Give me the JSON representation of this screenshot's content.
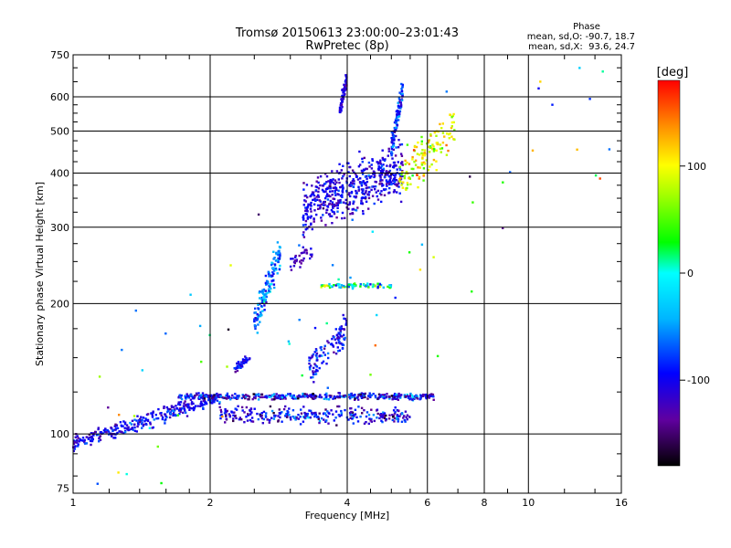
{
  "chart_data": {
    "type": "scatter",
    "title": "Tromsø 20150613 23:00:00–23:01:43",
    "subtitle": "RwPretec (8p)",
    "xlabel": "Frequency [MHz]",
    "ylabel": "Stationary phase Virtual Height [km]",
    "x_scale": "log",
    "y_scale": "log",
    "xlim": [
      1,
      16
    ],
    "ylim": [
      73,
      750
    ],
    "x_ticks": [
      1,
      2,
      4,
      6,
      8,
      10,
      16
    ],
    "y_ticks": [
      75,
      100,
      200,
      300,
      400,
      500,
      600,
      750
    ],
    "grid_x": [
      2,
      4,
      6,
      8,
      10
    ],
    "grid_y": [
      100,
      200,
      300,
      400,
      500,
      600
    ],
    "grid": true,
    "phase_stats": {
      "heading": "Phase",
      "line_o": "mean, sd,O: -90.7, 18.7",
      "line_x": "mean, sd,X:  93.6, 24.7"
    },
    "colorbar": {
      "label": "[deg]",
      "min": -180,
      "max": 180,
      "ticks": [
        100,
        0,
        -100
      ]
    },
    "groups": [
      {
        "fmin": 1.0,
        "fmax": 2.1,
        "h0": 95,
        "h1": 122,
        "n": 320,
        "hj": 0.03,
        "pc": -100,
        "ps": 30
      },
      {
        "fmin": 1.7,
        "fmax": 6.2,
        "h0": 122,
        "h1": 122,
        "n": 420,
        "hj": 0.012,
        "pc": -100,
        "ps": 55
      },
      {
        "fmin": 2.1,
        "fmax": 5.5,
        "h0": 111,
        "h1": 110,
        "n": 280,
        "hj": 0.03,
        "pc": -100,
        "ps": 45
      },
      {
        "fmin": 2.25,
        "fmax": 2.45,
        "h0": 140,
        "h1": 150,
        "n": 40,
        "hj": 0.02,
        "pc": -95,
        "ps": 25
      },
      {
        "fmin": 2.5,
        "fmax": 2.85,
        "h0": 180,
        "h1": 260,
        "n": 160,
        "hj": 0.06,
        "pc": -60,
        "ps": 45
      },
      {
        "fmin": 3.0,
        "fmax": 3.35,
        "h0": 245,
        "h1": 265,
        "n": 35,
        "hj": 0.03,
        "pc": -120,
        "ps": 20
      },
      {
        "fmin": 3.3,
        "fmax": 4.0,
        "h0": 140,
        "h1": 175,
        "n": 110,
        "hj": 0.06,
        "pc": -95,
        "ps": 30
      },
      {
        "fmin": 3.5,
        "fmax": 5.0,
        "h0": 220,
        "h1": 220,
        "n": 80,
        "hj": 0.01,
        "pc": 10,
        "ps": 90
      },
      {
        "fmin": 3.2,
        "fmax": 5.3,
        "h0": 330,
        "h1": 410,
        "n": 520,
        "hj": 0.1,
        "pc": -105,
        "ps": 30
      },
      {
        "fmin": 3.85,
        "fmax": 4.0,
        "h0": 560,
        "h1": 660,
        "n": 60,
        "hj": 0.03,
        "pc": -110,
        "ps": 20
      },
      {
        "fmin": 5.0,
        "fmax": 5.3,
        "h0": 460,
        "h1": 620,
        "n": 100,
        "hj": 0.05,
        "pc": -80,
        "ps": 40
      },
      {
        "fmin": 5.2,
        "fmax": 6.9,
        "h0": 380,
        "h1": 520,
        "n": 140,
        "hj": 0.08,
        "pc": 95,
        "ps": 45
      },
      {
        "fmin": 1.0,
        "fmax": 16.0,
        "h0": 75,
        "h1": 700,
        "n": 70,
        "hj": 0.5,
        "pc": 0,
        "ps": 120
      }
    ]
  }
}
